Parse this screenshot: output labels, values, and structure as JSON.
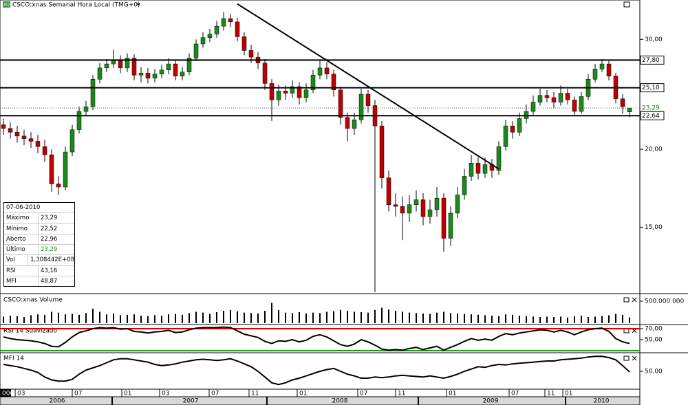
{
  "header": {
    "icon": "EQ",
    "title": "CSCO:xnas Semanal Hora Local (TMG+0)"
  },
  "chart_data": [
    {
      "type": "candlestick",
      "log_scale": true,
      "xlim": [
        0,
        92
      ],
      "ylim": [
        11.8,
        34.7
      ],
      "yticks": [
        {
          "value": 15,
          "label": "15,00"
        },
        {
          "value": 20,
          "label": "20,00"
        },
        {
          "value": 30,
          "label": "30,00"
        }
      ],
      "up_color": "#1a8a1a",
      "down_color": "#c00000",
      "open": [
        21.9,
        21.6,
        21.3,
        21.0,
        20.8,
        20.6,
        20.2,
        19.6,
        17.6,
        17.4,
        19.8,
        21.5,
        23.0,
        23.4,
        25.9,
        27.0,
        27.4,
        27.8,
        27.0,
        28.0,
        26.3,
        26.5,
        26.0,
        26.4,
        26.8,
        27.4,
        26.2,
        26.6,
        28.0,
        29.5,
        30.2,
        30.6,
        31.5,
        32.4,
        32.0,
        30.3,
        28.8,
        28.1,
        27.5,
        25.5,
        24.0,
        24.8,
        24.6,
        25.2,
        24.2,
        24.9,
        26.3,
        27.0,
        26.4,
        24.9,
        22.5,
        21.6,
        22.3,
        24.5,
        23.5,
        21.8,
        18.0,
        16.3,
        16.2,
        15.8,
        16.3,
        16.6,
        15.6,
        16.0,
        16.7,
        14.4,
        15.8,
        16.9,
        18.1,
        19.0,
        18.3,
        18.9,
        18.5,
        20.2,
        21.8,
        21.3,
        22.4,
        23.0,
        23.8,
        24.4,
        24.2,
        23.8,
        24.6,
        24.0,
        23.0,
        24.3,
        25.9,
        26.9,
        27.4,
        26.2,
        24.1,
        22.96
      ],
      "high": [
        22.4,
        22.1,
        21.8,
        21.5,
        21.3,
        21.1,
        20.7,
        20.0,
        18.1,
        20.2,
        21.9,
        23.4,
        23.9,
        26.3,
        27.5,
        27.9,
        28.9,
        28.3,
        28.5,
        28.4,
        27.1,
        27.0,
        26.9,
        27.3,
        28.0,
        27.8,
        27.1,
        28.5,
        30.0,
        30.8,
        31.2,
        32.1,
        33.2,
        33.0,
        32.5,
        30.8,
        29.4,
        28.6,
        27.9,
        25.9,
        25.4,
        25.3,
        25.8,
        25.6,
        25.5,
        26.8,
        27.8,
        27.6,
        26.8,
        25.2,
        22.9,
        22.9,
        25.0,
        24.9,
        24.0,
        22.2,
        18.5,
        17.0,
        16.8,
        16.9,
        17.2,
        17.0,
        16.6,
        17.4,
        17.0,
        16.2,
        17.4,
        18.6,
        19.6,
        19.4,
        19.4,
        19.3,
        20.6,
        22.3,
        22.2,
        22.9,
        23.6,
        24.4,
        25.0,
        24.9,
        24.7,
        25.3,
        25.0,
        24.3,
        24.7,
        26.4,
        27.4,
        27.9,
        27.7,
        26.5,
        24.5,
        23.29
      ],
      "low": [
        21.1,
        20.8,
        20.5,
        20.3,
        20.1,
        19.7,
        19.1,
        17.1,
        16.9,
        17.2,
        19.5,
        21.2,
        22.6,
        23.1,
        25.5,
        26.6,
        27.0,
        26.5,
        26.6,
        25.8,
        25.6,
        25.5,
        25.6,
        26.0,
        26.4,
        25.8,
        25.8,
        26.3,
        27.7,
        29.1,
        29.7,
        30.2,
        31.0,
        31.4,
        29.8,
        28.3,
        27.5,
        26.9,
        24.9,
        22.2,
        23.5,
        24.0,
        24.2,
        23.6,
        23.8,
        24.6,
        25.9,
        25.9,
        24.3,
        21.9,
        20.6,
        21.1,
        22.0,
        22.9,
        11.8,
        17.3,
        15.9,
        15.6,
        14.3,
        15.3,
        15.9,
        15.1,
        15.2,
        15.6,
        13.7,
        14.0,
        15.5,
        16.6,
        17.8,
        17.9,
        18.0,
        18.0,
        18.2,
        19.9,
        20.8,
        21.0,
        22.0,
        22.7,
        23.5,
        23.8,
        23.3,
        23.5,
        23.6,
        22.6,
        22.8,
        24.0,
        25.6,
        26.6,
        25.8,
        23.7,
        22.8,
        22.52
      ],
      "close": [
        21.6,
        21.3,
        21.0,
        20.8,
        20.6,
        20.2,
        19.6,
        17.6,
        17.4,
        19.8,
        21.5,
        23.0,
        23.4,
        25.9,
        27.0,
        27.4,
        27.8,
        27.0,
        28.0,
        26.3,
        26.5,
        26.0,
        26.4,
        26.8,
        27.4,
        26.2,
        26.6,
        28.0,
        29.5,
        30.2,
        30.6,
        31.5,
        32.4,
        32.0,
        30.3,
        28.8,
        28.1,
        27.5,
        25.5,
        24.0,
        24.8,
        24.6,
        25.2,
        24.2,
        24.9,
        26.3,
        27.0,
        26.4,
        24.9,
        22.5,
        21.6,
        22.3,
        24.5,
        23.5,
        21.8,
        18.0,
        16.3,
        16.2,
        15.8,
        16.3,
        16.6,
        15.6,
        16.0,
        16.7,
        14.4,
        15.8,
        16.9,
        18.1,
        19.0,
        18.3,
        18.9,
        18.5,
        20.2,
        21.8,
        21.3,
        22.4,
        23.0,
        23.8,
        24.4,
        24.2,
        23.8,
        24.6,
        24.0,
        23.0,
        24.3,
        25.9,
        26.9,
        27.4,
        26.2,
        24.1,
        23.4,
        23.29
      ],
      "levels": [
        {
          "value": 27.8,
          "label": "27,80"
        },
        {
          "value": 25.1,
          "label": "25,10"
        },
        {
          "value": 22.64,
          "label": "22,64"
        }
      ],
      "last": {
        "value": 23.29,
        "label": "23,29",
        "color": "#1a8a1a"
      },
      "trendline": {
        "x": [
          34.5,
          72.5
        ],
        "values": [
          34.2,
          18.6
        ]
      },
      "info_box": {
        "date": "07-06-2010",
        "rows": [
          [
            "Máximo",
            "23,29"
          ],
          [
            "Mínimo",
            "22,52"
          ],
          [
            "Aberto",
            "22,96"
          ],
          [
            "Último",
            "23,29"
          ],
          [
            "Vol",
            "1,308442E+08"
          ],
          [
            "RSI",
            "43,16"
          ],
          [
            "MFI",
            "48,87"
          ]
        ]
      }
    },
    {
      "type": "bar",
      "title": "CSCO:xnas Volume",
      "color": "#000000",
      "xlim": [
        0,
        92
      ],
      "ylim": [
        0,
        625000000
      ],
      "yticks": [
        {
          "value": 500000000,
          "label": "500.000.000"
        }
      ],
      "values": [
        150000000,
        170000000,
        160000000,
        140000000,
        180000000,
        200000000,
        190000000,
        260000000,
        240000000,
        200000000,
        210000000,
        190000000,
        230000000,
        330000000,
        260000000,
        200000000,
        220000000,
        180000000,
        190000000,
        200000000,
        170000000,
        160000000,
        180000000,
        170000000,
        200000000,
        210000000,
        190000000,
        230000000,
        260000000,
        240000000,
        210000000,
        250000000,
        280000000,
        300000000,
        270000000,
        240000000,
        230000000,
        220000000,
        280000000,
        460000000,
        300000000,
        240000000,
        230000000,
        250000000,
        220000000,
        240000000,
        230000000,
        260000000,
        270000000,
        300000000,
        280000000,
        260000000,
        250000000,
        240000000,
        300000000,
        350000000,
        310000000,
        280000000,
        260000000,
        240000000,
        230000000,
        220000000,
        210000000,
        240000000,
        260000000,
        230000000,
        220000000,
        210000000,
        200000000,
        190000000,
        180000000,
        170000000,
        160000000,
        200000000,
        190000000,
        170000000,
        160000000,
        150000000,
        140000000,
        150000000,
        140000000,
        150000000,
        130000000,
        160000000,
        170000000,
        140000000,
        150000000,
        160000000,
        180000000,
        210000000,
        190000000,
        130844200
      ]
    },
    {
      "type": "line",
      "title": "RSI 14 Suavizado",
      "color": "#000000",
      "xlim": [
        0,
        92
      ],
      "ylim": [
        27.5,
        73.75
      ],
      "yticks": [
        {
          "value": 70,
          "label": "70,00"
        },
        {
          "value": 50,
          "label": "50,00"
        }
      ],
      "bands": [
        {
          "value": 70,
          "color": "#e00000"
        },
        {
          "value": 30,
          "color": "#1a9a1a"
        }
      ],
      "values": [
        55,
        52,
        50,
        49,
        48,
        46,
        43,
        38,
        37,
        45,
        55,
        63,
        66,
        70,
        72,
        71,
        72,
        69,
        70,
        65,
        64,
        62,
        64,
        65,
        67,
        63,
        64,
        68,
        71,
        72,
        72,
        72,
        73,
        72,
        66,
        60,
        57,
        54,
        47,
        43,
        48,
        47,
        50,
        46,
        49,
        56,
        59,
        55,
        48,
        41,
        38,
        42,
        50,
        46,
        40,
        33,
        31,
        32,
        31,
        34,
        36,
        32,
        35,
        38,
        31,
        36,
        41,
        47,
        52,
        49,
        51,
        49,
        56,
        61,
        59,
        62,
        64,
        66,
        68,
        67,
        64,
        67,
        64,
        59,
        64,
        68,
        70,
        71,
        65,
        52,
        46,
        43.16
      ]
    },
    {
      "type": "line",
      "title": "MFI 14",
      "color": "#000000",
      "xlim": [
        0,
        92
      ],
      "ylim": [
        20,
        80
      ],
      "yticks": [
        {
          "value": 50,
          "label": "50,00"
        }
      ],
      "values": [
        62,
        60,
        58,
        55,
        52,
        48,
        40,
        35,
        33,
        33,
        36,
        45,
        52,
        56,
        60,
        65,
        70,
        72,
        72,
        70,
        68,
        66,
        62,
        60,
        61,
        63,
        66,
        68,
        70,
        71,
        70,
        69,
        70,
        72,
        68,
        63,
        58,
        50,
        40,
        30,
        27,
        30,
        35,
        38,
        42,
        46,
        50,
        53,
        55,
        50,
        45,
        42,
        38,
        38,
        40,
        39,
        40,
        42,
        43,
        42,
        41,
        40,
        42,
        40,
        38,
        41,
        45,
        50,
        54,
        58,
        57,
        60,
        62,
        61,
        63,
        64,
        65,
        66,
        67,
        68,
        68,
        70,
        71,
        72,
        73,
        75,
        76,
        76,
        74,
        70,
        60,
        48.87
      ]
    }
  ],
  "x_axis": {
    "xlim": [
      0,
      92
    ],
    "months": [
      {
        "value": 0,
        "label": "006"
      },
      {
        "value": 2.2,
        "label": "03"
      },
      {
        "value": 10.5,
        "label": "07"
      },
      {
        "value": 17.7,
        "label": "01"
      },
      {
        "value": 23.2,
        "label": "03"
      },
      {
        "value": 30.4,
        "label": "07"
      },
      {
        "value": 36.2,
        "label": "11"
      },
      {
        "value": 43.2,
        "label": "01"
      },
      {
        "value": 52.0,
        "label": "07"
      },
      {
        "value": 57.5,
        "label": "11"
      },
      {
        "value": 64.9,
        "label": "01"
      },
      {
        "value": 74.0,
        "label": "07"
      },
      {
        "value": 79.2,
        "label": "11"
      },
      {
        "value": 81.8,
        "label": "01"
      }
    ],
    "years": [
      {
        "value": 8.3,
        "label": "2006"
      },
      {
        "value": 27.7,
        "label": "2007"
      },
      {
        "value": 49.4,
        "label": "2008"
      },
      {
        "value": 71.3,
        "label": "2009"
      },
      {
        "value": 87.4,
        "label": "2010"
      }
    ],
    "year_lines": [
      16.3,
      38.8,
      60.8,
      82.2
    ]
  }
}
